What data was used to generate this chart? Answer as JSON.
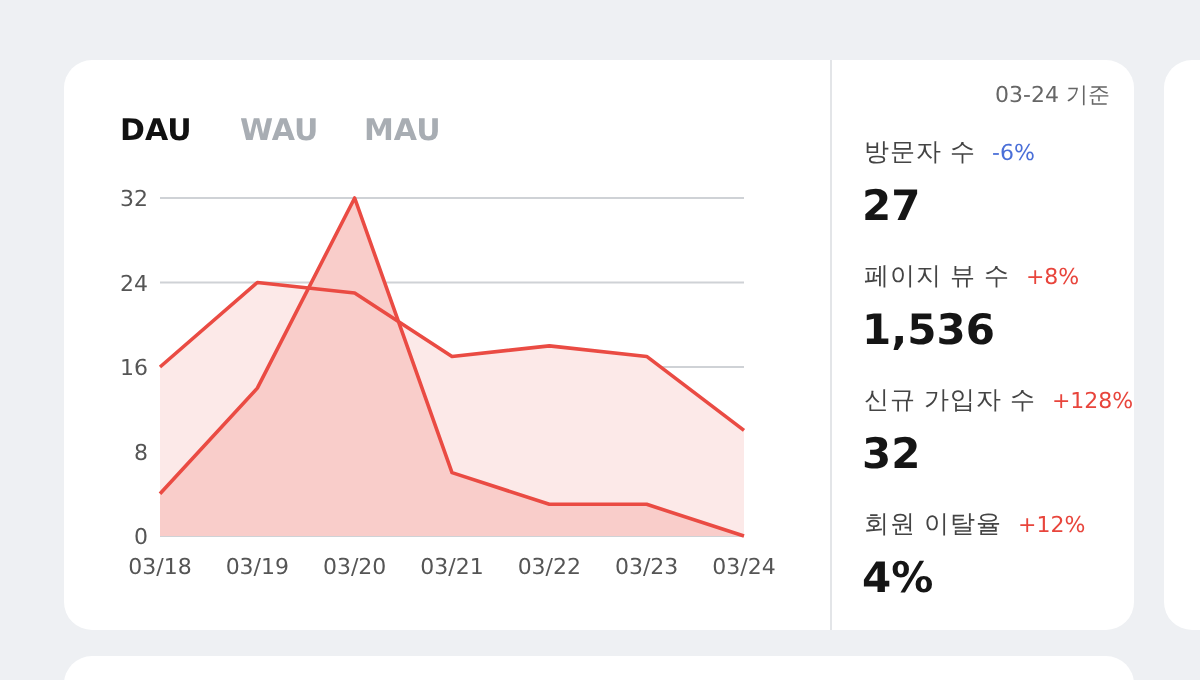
{
  "chart_data": [
    {
      "type": "area",
      "title": "DAU",
      "annotations": [
        "WAU",
        "MAU"
      ],
      "categories": [
        "03/18",
        "03/19",
        "03/20",
        "03/21",
        "03/22",
        "03/23",
        "03/24"
      ],
      "series": [
        {
          "color": "#ea4b43",
          "values": [
            16,
            24,
            23,
            17,
            18,
            17,
            10
          ]
        },
        {
          "color": "#ea4b43",
          "values": [
            4,
            14,
            32,
            6,
            3,
            3,
            0
          ]
        }
      ],
      "ylim": [
        0,
        32
      ],
      "yticks": [
        0,
        8,
        16,
        24,
        32
      ],
      "grid": "y",
      "marker": "none",
      "line_style": "solid"
    },
    {
      "type": "other",
      "title": "03-24 기준",
      "categories": [
        "방문자 수",
        "페이지 뷰 수",
        "신규 가입자 수",
        "회원 이탈율"
      ],
      "annotations": [
        "-6%",
        "+8%",
        "+128%",
        "+12%"
      ],
      "colors": [
        "#4a6fd8",
        "#e8453c",
        "#e8453c",
        "#e8453c"
      ],
      "value_labels": [
        "27",
        "1,536",
        "32",
        "4%"
      ]
    }
  ]
}
